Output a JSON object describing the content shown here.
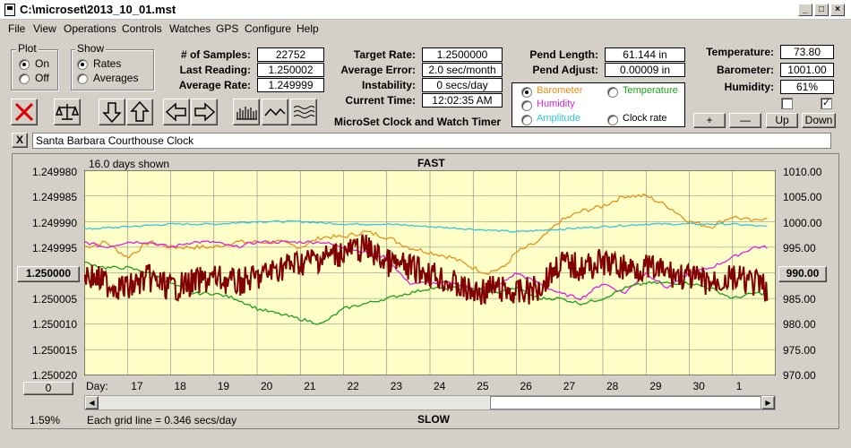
{
  "window": {
    "title": "C:\\microset\\2013_10_01.mst"
  },
  "menu": [
    "File",
    "View",
    "Operations",
    "Controls",
    "Watches",
    "GPS",
    "Configure",
    "Help"
  ],
  "plot_group": {
    "label": "Plot",
    "on": "On",
    "off": "Off"
  },
  "show_group": {
    "label": "Show",
    "rates": "Rates",
    "averages": "Averages"
  },
  "stats": {
    "samples_label": "# of Samples:",
    "samples": "22752",
    "last_label": "Last Reading:",
    "last": "1.250002",
    "avg_rate_label": "Average Rate:",
    "avg_rate": "1.249999",
    "target_label": "Target Rate:",
    "target": "1.2500000",
    "avg_err_label": "Average Error:",
    "avg_err": "2.0 sec/month",
    "instab_label": "Instability:",
    "instab": "0 secs/day",
    "time_label": "Current Time:",
    "time": "12:02:35 AM",
    "pend_len_label": "Pend Length:",
    "pend_len": "61.144 in",
    "pend_adj_label": "Pend Adjust:",
    "pend_adj": "0.00009 in",
    "temp_label": "Temperature:",
    "temp": "73.80",
    "baro_label": "Barometer:",
    "baro": "1001.00",
    "hum_label": "Humidity:",
    "hum": "61%"
  },
  "app_caption": "MicroSet Clock and Watch Timer",
  "sensor_options": {
    "barometer": "Barometer",
    "temperature": "Temperature",
    "humidity": "Humidity",
    "amplitude": "Amplitude",
    "clock_rate": "Clock rate"
  },
  "colors": {
    "barometer": "#e8901a",
    "temperature": "#1aa01a",
    "humidity": "#e020e0",
    "amplitude": "#30c8e0",
    "clock_rate": "#800000",
    "plot_bg": "#ffffc8"
  },
  "adjust_buttons": {
    "plus": "+",
    "minus": "—",
    "up": "Up",
    "down": "Down"
  },
  "close_x": "X",
  "clock_name": "Santa Barbara Courthouse Clock",
  "plot": {
    "days_shown": "16.0 days shown",
    "fast": "FAST",
    "slow": "SLOW",
    "left_center": "1.250000",
    "right_center": "990.00",
    "scroll_value": "0",
    "percent": "1.59%",
    "grid_note": "Each grid line = 0.346 secs/day",
    "day_label": "Day:"
  },
  "chart_data": {
    "type": "line",
    "title": "",
    "xlabel": "Day:",
    "x_ticks": [
      "17",
      "18",
      "19",
      "20",
      "21",
      "22",
      "23",
      "24",
      "25",
      "26",
      "27",
      "28",
      "29",
      "30",
      "1"
    ],
    "y_left_ticks": [
      "1.249980",
      "1.249985",
      "1.249990",
      "1.249995",
      "1.250000",
      "1.250005",
      "1.250010",
      "1.250015",
      "1.250020"
    ],
    "y_right_ticks": [
      "1010.00",
      "1005.00",
      "1000.00",
      "995.00",
      "990.00",
      "985.00",
      "980.00",
      "975.00",
      "970.00"
    ],
    "ylim_left": [
      1.24998,
      1.25002
    ],
    "ylim_right": [
      970,
      1010
    ],
    "series": [
      {
        "key": "barometer",
        "name": "Barometer",
        "axis": "right",
        "x": [
          16.0,
          16.5,
          17.0,
          17.5,
          18.0,
          18.5,
          19.0,
          19.5,
          20.0,
          20.5,
          21.0,
          21.5,
          22.0,
          22.5,
          23.0,
          23.5,
          24.0,
          24.5,
          25.0,
          25.3,
          25.7,
          26.0,
          26.5,
          27.0,
          27.5,
          28.0,
          28.5,
          29.0,
          29.5,
          30.0,
          30.5,
          31.0,
          31.5,
          31.8
        ],
        "y": [
          995,
          996,
          993,
          996,
          995,
          995,
          995,
          996,
          996,
          996,
          995,
          997,
          997,
          998,
          997,
          995,
          994,
          993,
          991,
          990,
          991,
          994,
          996,
          1000,
          1002,
          1003,
          1005,
          1005,
          1003,
          1000,
          999,
          1001,
          1000,
          1001
        ]
      },
      {
        "key": "amplitude",
        "name": "Amplitude",
        "axis": "right",
        "x": [
          16.0,
          17.0,
          18.0,
          19.0,
          20.0,
          21.0,
          22.0,
          23.0,
          24.0,
          25.0,
          26.0,
          27.0,
          28.0,
          29.0,
          30.0,
          31.0,
          31.8
        ],
        "y": [
          998.5,
          999,
          999.5,
          999.5,
          1000,
          1000,
          999.5,
          999.5,
          999,
          998.5,
          998,
          998.5,
          999,
          999.5,
          999.5,
          999.5,
          999
        ]
      },
      {
        "key": "humidity",
        "name": "Humidity",
        "axis": "right",
        "x": [
          16.0,
          16.5,
          17.0,
          17.5,
          18.0,
          18.5,
          19.0,
          19.5,
          20.0,
          20.5,
          21.0,
          21.5,
          22.0,
          22.5,
          23.0,
          23.5,
          24.0,
          24.5,
          25.0,
          25.5,
          26.0,
          26.5,
          27.0,
          27.5,
          28.0,
          28.5,
          29.0,
          29.5,
          30.0,
          30.5,
          31.0,
          31.5,
          31.8
        ],
        "y": [
          996,
          995,
          996,
          996,
          995,
          996,
          996,
          995,
          996,
          996,
          996,
          996,
          995,
          994,
          993,
          988,
          988,
          988,
          987,
          987,
          990,
          988,
          986,
          985,
          988,
          986,
          990,
          987,
          990,
          991,
          993,
          995,
          995
        ]
      },
      {
        "key": "temperature",
        "name": "Temperature",
        "axis": "right",
        "x": [
          16.0,
          16.5,
          17.0,
          17.5,
          18.0,
          18.5,
          19.0,
          19.5,
          20.0,
          20.5,
          21.0,
          21.5,
          22.0,
          22.5,
          23.0,
          23.5,
          24.0,
          24.5,
          25.0,
          25.5,
          26.0,
          26.5,
          27.0,
          27.5,
          28.0,
          28.5,
          29.0,
          29.5,
          30.0,
          30.5,
          31.0,
          31.5,
          31.8
        ],
        "y": [
          992,
          991,
          991,
          990,
          988,
          986,
          986,
          985,
          983,
          982,
          981,
          980,
          983,
          984,
          985,
          986,
          987,
          987,
          987,
          986,
          987,
          985,
          985,
          984,
          985,
          987,
          988,
          988,
          988,
          987,
          985,
          986,
          986
        ]
      },
      {
        "key": "clock_rate",
        "name": "Clock rate",
        "axis": "left",
        "x": [
          16.0,
          16.5,
          17.0,
          17.5,
          18.0,
          18.5,
          19.0,
          19.5,
          20.0,
          20.5,
          21.0,
          21.5,
          22.0,
          22.5,
          23.0,
          23.5,
          24.0,
          24.5,
          25.0,
          25.5,
          26.0,
          26.5,
          27.0,
          27.5,
          28.0,
          28.5,
          29.0,
          29.5,
          30.0,
          30.5,
          31.0,
          31.5,
          31.8
        ],
        "y": [
          1.25,
          1.250002,
          1.250003,
          1.250001,
          1.250003,
          1.250002,
          1.250001,
          1.250002,
          1.250001,
          1.249999,
          1.249998,
          1.249997,
          1.249996,
          1.249995,
          1.249998,
          1.249999,
          1.25,
          1.250002,
          1.250004,
          1.250003,
          1.250004,
          1.250003,
          1.249998,
          1.249999,
          1.249998,
          1.249999,
          1.249999,
          1.25,
          1.250001,
          1.250002,
          1.250001,
          1.250002,
          1.250003
        ]
      }
    ]
  }
}
